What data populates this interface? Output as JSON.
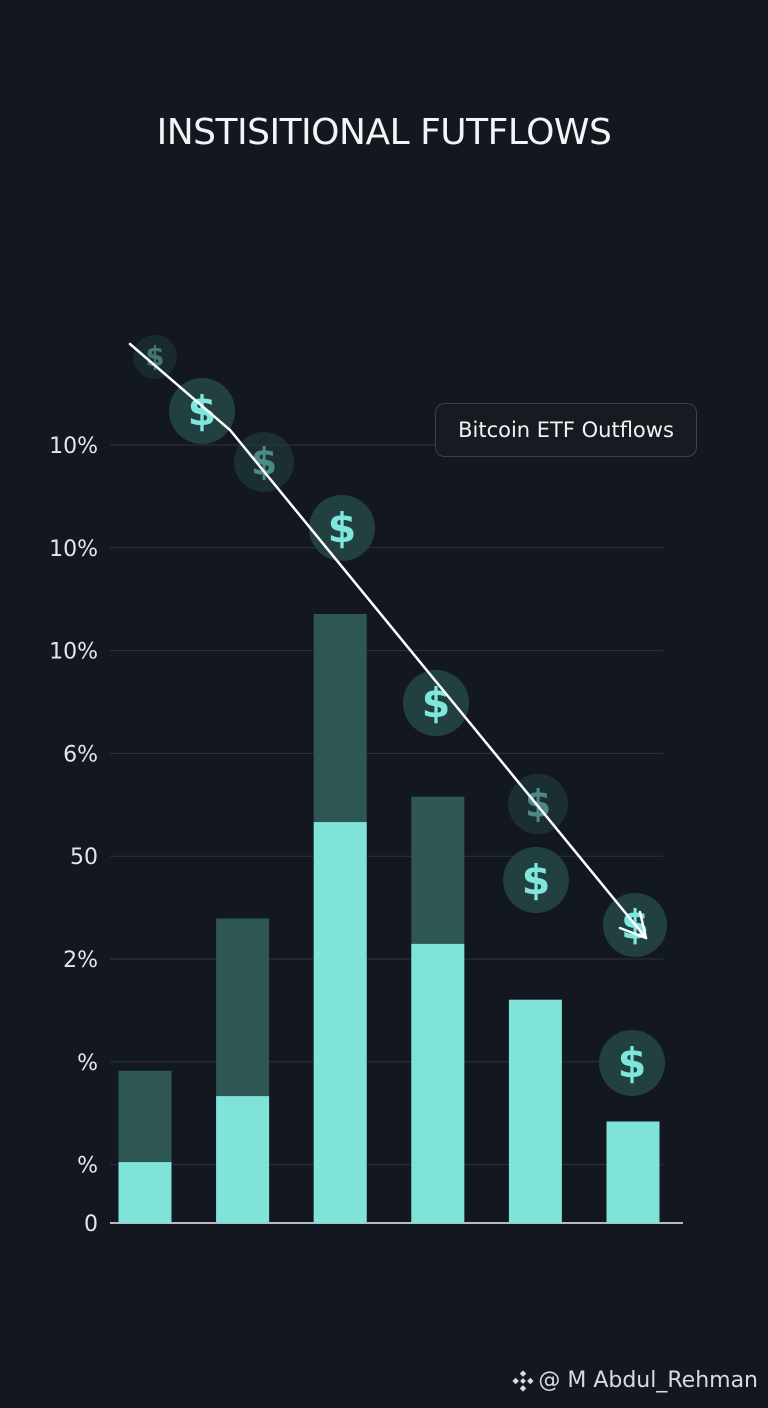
{
  "chart_data": {
    "type": "bar",
    "title": "INSTISITIONAL FUTFLOWS",
    "legend": "Bitcoin ETF Outflows",
    "legend_position": "top-right",
    "y_tick_labels": [
      "10%",
      "10%",
      "10%",
      "6%",
      "50",
      "2%",
      "%",
      "%",
      "0"
    ],
    "categories": [
      "",
      "",
      "",
      "",
      "",
      ""
    ],
    "series": [
      {
        "values": [
          0.6,
          1.25,
          3.95,
          2.75,
          2.2,
          1.0
        ]
      },
      {
        "values": [
          1.5,
          3.0,
          6.0,
          4.2,
          0,
          0
        ]
      }
    ],
    "stacked": false,
    "grid": true,
    "trend_arrow": "downward",
    "colors": {
      "front": "#7fe3da",
      "back": "#2e5753",
      "grid": "#2c333a",
      "axis": "#b7bcc1",
      "background": "#131820",
      "coin": "#7ee6dc",
      "coin_bg": "#22403f"
    }
  },
  "watermark": {
    "text": "@ M Abdul_Rehman",
    "icon": "binance-icon"
  }
}
